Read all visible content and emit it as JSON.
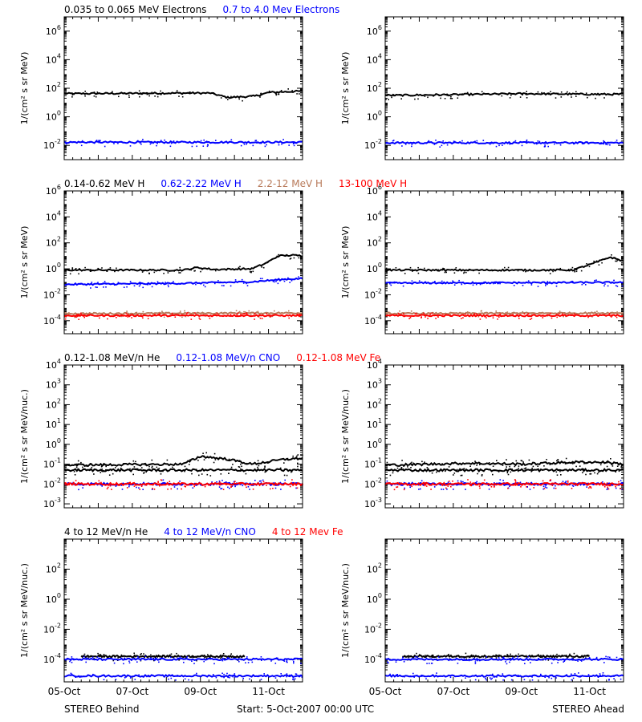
{
  "footer": {
    "left_label": "STEREO Behind",
    "center_label": "Start:  5-Oct-2007 00:00 UTC",
    "right_label": "STEREO Ahead"
  },
  "colors": {
    "black": "#000000",
    "blue": "#0000ff",
    "tan": "#b87a5a",
    "red": "#ff0000"
  },
  "chart_data": [
    {
      "type": "scatter",
      "row": 0,
      "scale": "log",
      "ylabel": "1/(cm² s sr MeV)",
      "ylim_exp": [
        -3,
        7
      ],
      "yticks_exp": [
        -2,
        0,
        2,
        4,
        6
      ],
      "xticks": [
        "05-Oct",
        "07-Oct",
        "09-Oct",
        "11-Oct"
      ],
      "series_labels": [
        {
          "name": "0.035 to 0.065 MeV Electrons",
          "color": "#000000"
        },
        {
          "name": "0.7 to 4.0 Mev Electrons",
          "color": "#0000ff"
        }
      ],
      "panels": [
        {
          "spacecraft": "STEREO Behind",
          "series": [
            {
              "color": "#000000",
              "x": [
                0,
                3.4,
                4.3,
                4.8,
                5.6,
                6.0,
                7.0
              ],
              "y_log": [
                1.62,
                1.66,
                1.66,
                1.35,
                1.45,
                1.7,
                1.8
              ]
            },
            {
              "color": "#0000ff",
              "x": [
                0,
                7.0
              ],
              "y_log": [
                -1.78,
                -1.78
              ]
            }
          ]
        },
        {
          "spacecraft": "STEREO Ahead",
          "series": [
            {
              "color": "#000000",
              "x": [
                0,
                2.0,
                4.0,
                6.0,
                7.0
              ],
              "y_log": [
                1.5,
                1.55,
                1.62,
                1.58,
                1.58
              ]
            },
            {
              "color": "#0000ff",
              "x": [
                0,
                7.0
              ],
              "y_log": [
                -1.82,
                -1.82
              ]
            }
          ]
        }
      ]
    },
    {
      "type": "scatter",
      "row": 1,
      "scale": "log",
      "ylabel": "1/(cm² s sr MeV)",
      "ylim_exp": [
        -5,
        6
      ],
      "yticks_exp": [
        -4,
        -2,
        0,
        2,
        4,
        6
      ],
      "xticks": [
        "05-Oct",
        "07-Oct",
        "09-Oct",
        "11-Oct"
      ],
      "series_labels": [
        {
          "name": "0.14-0.62 MeV H",
          "color": "#000000"
        },
        {
          "name": "0.62-2.22 MeV H",
          "color": "#0000ff"
        },
        {
          "name": "2.2-12 MeV H",
          "color": "#b87a5a"
        },
        {
          "name": "13-100 MeV H",
          "color": "#ff0000"
        }
      ],
      "panels": [
        {
          "spacecraft": "STEREO Behind",
          "series": [
            {
              "color": "#000000",
              "x": [
                0,
                3.5,
                3.9,
                4.4,
                5.5,
                5.9,
                6.3,
                6.7,
                7.0
              ],
              "y_log": [
                -0.1,
                -0.1,
                0.1,
                -0.05,
                0.0,
                0.4,
                1.0,
                1.05,
                1.0
              ]
            },
            {
              "color": "#0000ff",
              "x": [
                0,
                3.5,
                5.5,
                6.5,
                7.0
              ],
              "y_log": [
                -1.2,
                -1.12,
                -1.0,
                -0.8,
                -0.75
              ]
            },
            {
              "color": "#b87a5a",
              "x": [
                0,
                7.0
              ],
              "y_log": [
                -3.45,
                -3.4
              ]
            },
            {
              "color": "#ff0000",
              "x": [
                0,
                7.0
              ],
              "y_log": [
                -3.6,
                -3.6
              ]
            }
          ]
        },
        {
          "spacecraft": "STEREO Ahead",
          "series": [
            {
              "color": "#000000",
              "x": [
                0,
                5.5,
                6.1,
                6.6,
                7.0
              ],
              "y_log": [
                -0.1,
                -0.1,
                0.4,
                0.9,
                0.6
              ]
            },
            {
              "color": "#0000ff",
              "x": [
                0,
                7.0
              ],
              "y_log": [
                -1.1,
                -1.05
              ]
            },
            {
              "color": "#b87a5a",
              "x": [
                0,
                7.0
              ],
              "y_log": [
                -3.45,
                -3.4
              ]
            },
            {
              "color": "#ff0000",
              "x": [
                0,
                7.0
              ],
              "y_log": [
                -3.6,
                -3.6
              ]
            }
          ]
        }
      ]
    },
    {
      "type": "scatter",
      "row": 2,
      "scale": "log",
      "ylabel": "1/(cm² s sr MeV/nuc.)",
      "ylim_exp": [
        -3.2,
        4
      ],
      "yticks_exp": [
        -3,
        -2,
        -1,
        0,
        1,
        2,
        3,
        4
      ],
      "xticks": [
        "05-Oct",
        "07-Oct",
        "09-Oct",
        "11-Oct"
      ],
      "series_labels": [
        {
          "name": "0.12-1.08 MeV/n He",
          "color": "#000000"
        },
        {
          "name": "0.12-1.08 MeV/n CNO",
          "color": "#0000ff"
        },
        {
          "name": "0.12-1.08 MeV Fe",
          "color": "#ff0000"
        }
      ],
      "panels": [
        {
          "spacecraft": "STEREO Behind",
          "series": [
            {
              "color": "#000000",
              "x": [
                0,
                3.5,
                4.0,
                4.8,
                5.5,
                6.5,
                7.0
              ],
              "y_log": [
                -1.05,
                -1.0,
                -0.6,
                -0.75,
                -1.0,
                -0.75,
                -0.7
              ]
            },
            {
              "color": "#000000",
              "x": [
                0,
                7.0
              ],
              "y_log": [
                -1.3,
                -1.3
              ]
            },
            {
              "color": "#0000ff",
              "x": [
                0,
                7.0
              ],
              "y_log": [
                -2.0,
                -2.0
              ]
            },
            {
              "color": "#ff0000",
              "x": [
                0,
                7.0
              ],
              "y_log": [
                -2.0,
                -2.0
              ]
            }
          ]
        },
        {
          "spacecraft": "STEREO Ahead",
          "series": [
            {
              "color": "#000000",
              "x": [
                0,
                2.5,
                4.0,
                5.5,
                6.5,
                7.0
              ],
              "y_log": [
                -1.05,
                -0.95,
                -1.0,
                -0.9,
                -0.9,
                -1.0
              ]
            },
            {
              "color": "#000000",
              "x": [
                0,
                7.0
              ],
              "y_log": [
                -1.3,
                -1.3
              ]
            },
            {
              "color": "#0000ff",
              "x": [
                0,
                7.0
              ],
              "y_log": [
                -2.0,
                -2.0
              ]
            },
            {
              "color": "#ff0000",
              "x": [
                0,
                7.0
              ],
              "y_log": [
                -2.0,
                -2.0
              ]
            }
          ]
        }
      ]
    },
    {
      "type": "scatter",
      "row": 3,
      "scale": "log",
      "ylabel": "1/(cm² s sr MeV/nuc.)",
      "ylim_exp": [
        -5.5,
        4
      ],
      "yticks_exp": [
        -4,
        -2,
        0,
        2
      ],
      "xticks": [
        "05-Oct",
        "07-Oct",
        "09-Oct",
        "11-Oct"
      ],
      "series_labels": [
        {
          "name": "4 to 12 MeV/n He",
          "color": "#000000"
        },
        {
          "name": "4 to 12 MeV/n CNO",
          "color": "#0000ff"
        },
        {
          "name": "4 to 12 Mev Fe",
          "color": "#ff0000"
        }
      ],
      "panels": [
        {
          "spacecraft": "STEREO Behind",
          "series": [
            {
              "color": "#000000",
              "x": [
                0.5,
                1.5,
                2.5,
                4.2,
                5.3
              ],
              "y_log": [
                -3.8,
                -3.8,
                -3.8,
                -3.8,
                -3.8
              ]
            },
            {
              "color": "#0000ff",
              "x": [
                0,
                7.0
              ],
              "y_log": [
                -4.0,
                -4.0
              ]
            },
            {
              "color": "#0000ff",
              "x": [
                0,
                7.0
              ],
              "y_log": [
                -5.1,
                -5.1
              ]
            }
          ]
        },
        {
          "spacecraft": "STEREO Ahead",
          "series": [
            {
              "color": "#000000",
              "x": [
                0.5,
                2.0,
                3.5,
                4.6,
                6.0
              ],
              "y_log": [
                -3.8,
                -3.8,
                -3.8,
                -3.8,
                -3.8
              ]
            },
            {
              "color": "#0000ff",
              "x": [
                0,
                7.0
              ],
              "y_log": [
                -4.0,
                -4.0
              ]
            },
            {
              "color": "#0000ff",
              "x": [
                0,
                7.0
              ],
              "y_log": [
                -5.1,
                -5.1
              ]
            }
          ]
        }
      ]
    }
  ]
}
